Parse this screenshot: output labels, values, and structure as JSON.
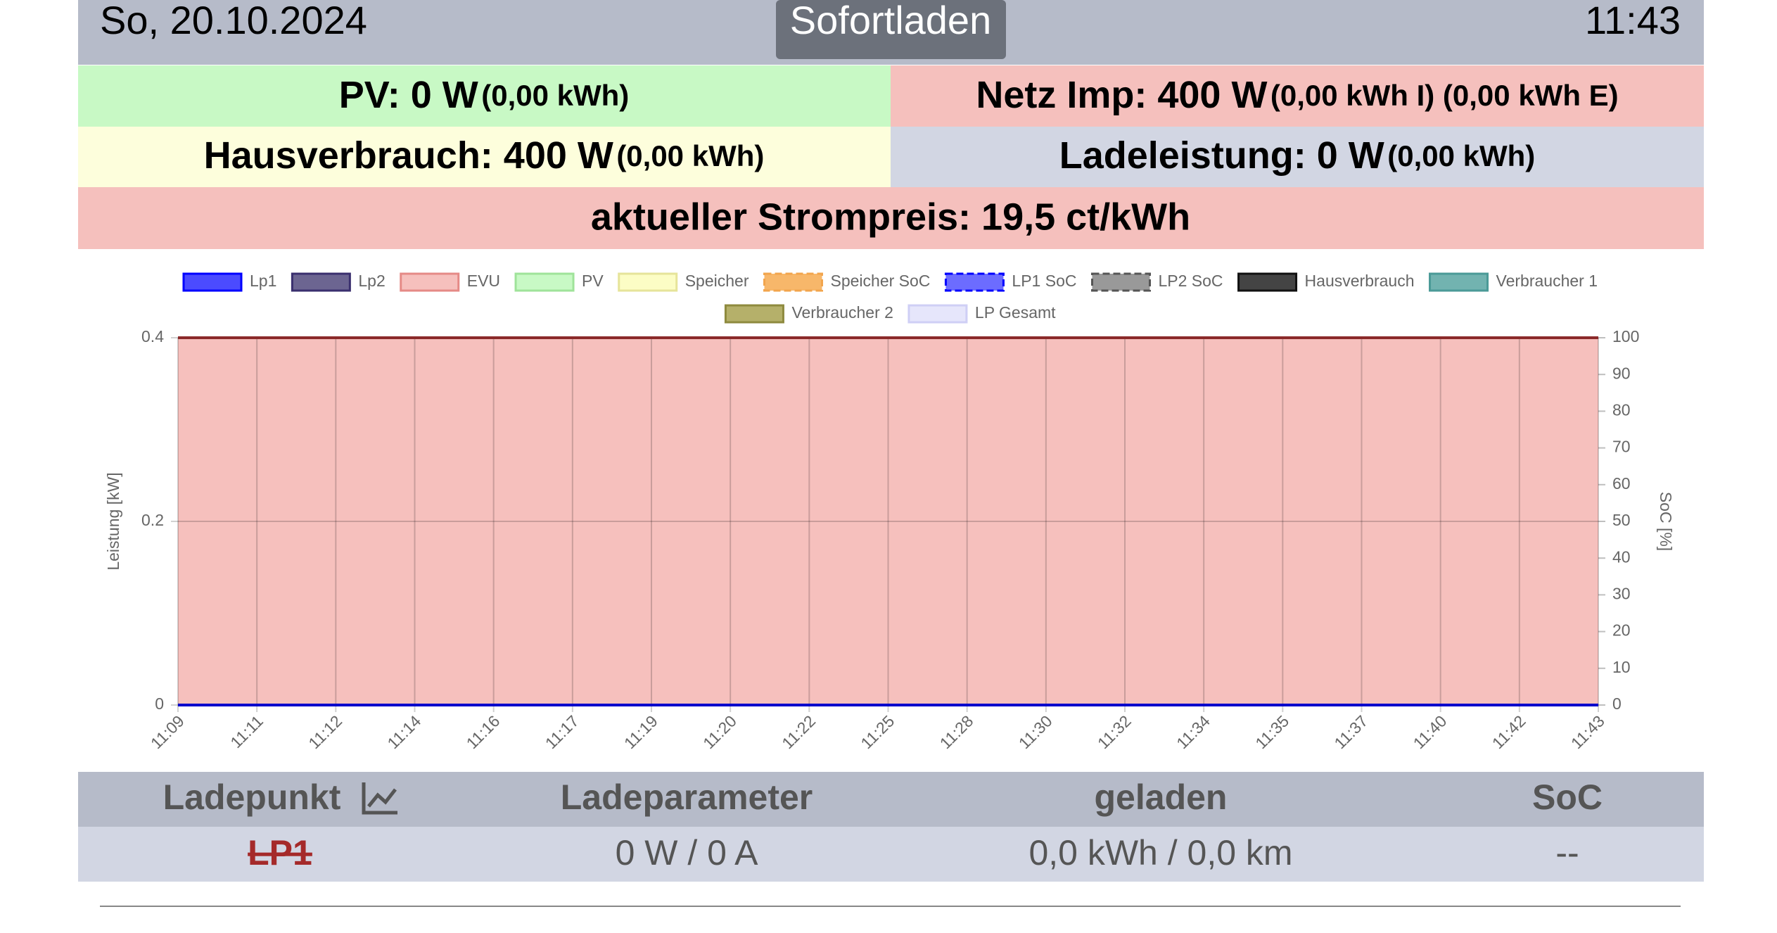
{
  "header": {
    "date": "So, 20.10.2024",
    "mode": "Sofortladen",
    "time": "11:43"
  },
  "status": {
    "pv": {
      "label": "PV: 0 W",
      "detail": "(0,00 kWh)"
    },
    "grid": {
      "label": "Netz Imp: 400 W",
      "detail": "(0,00 kWh I) (0,00 kWh E)"
    },
    "house": {
      "label": "Hausverbrauch: 400 W",
      "detail": "(0,00 kWh)"
    },
    "charge": {
      "label": "Ladeleistung: 0 W",
      "detail": "(0,00 kWh)"
    },
    "price": "aktueller Strompreis: 19,5 ct/kWh"
  },
  "chart_data": {
    "type": "area",
    "y_label": "Leistung [kW]",
    "y2_label": "SoC [%]",
    "categories": [
      "11:09",
      "11:11",
      "11:12",
      "11:14",
      "11:16",
      "11:17",
      "11:19",
      "11:20",
      "11:22",
      "11:25",
      "11:28",
      "11:30",
      "11:32",
      "11:34",
      "11:35",
      "11:37",
      "11:40",
      "11:42",
      "11:43"
    ],
    "series": [
      {
        "name": "EVU",
        "color": "#f6c0bd",
        "border": "#8b2a2a",
        "values": [
          0.4,
          0.4,
          0.4,
          0.4,
          0.4,
          0.4,
          0.4,
          0.4,
          0.4,
          0.4,
          0.4,
          0.4,
          0.4,
          0.4,
          0.4,
          0.4,
          0.4,
          0.4,
          0.4
        ]
      },
      {
        "name": "Lp1",
        "color": "#0000ff",
        "border": "#0000cc",
        "values": [
          0,
          0,
          0,
          0,
          0,
          0,
          0,
          0,
          0,
          0,
          0,
          0,
          0,
          0,
          0,
          0,
          0,
          0,
          0
        ]
      }
    ],
    "legend": [
      {
        "name": "Lp1",
        "color": "#4b4bff",
        "border": "#0000ff",
        "dashed": false
      },
      {
        "name": "Lp2",
        "color": "#6c6591",
        "border": "#3a2f6e",
        "dashed": false
      },
      {
        "name": "EVU",
        "color": "#f6c0bd",
        "border": "#e58a86",
        "dashed": false
      },
      {
        "name": "PV",
        "color": "#c8f9c5",
        "border": "#9fe39a",
        "dashed": false
      },
      {
        "name": "Speicher",
        "color": "#fcfdc5",
        "border": "#e6e49a",
        "dashed": false
      },
      {
        "name": "Speicher SoC",
        "color": "#f7b76a",
        "border": "#f2a54d",
        "dashed": true
      },
      {
        "name": "LP1 SoC",
        "color": "#6c6cff",
        "border": "#0000ff",
        "dashed": true
      },
      {
        "name": "LP2 SoC",
        "color": "#999999",
        "border": "#555555",
        "dashed": true
      },
      {
        "name": "Hausverbrauch",
        "color": "#444444",
        "border": "#111111",
        "dashed": false
      },
      {
        "name": "Verbraucher 1",
        "color": "#72b3b0",
        "border": "#4b9a97",
        "dashed": false
      },
      {
        "name": "Verbraucher 2",
        "color": "#b5b06a",
        "border": "#8e8a3e",
        "dashed": false
      },
      {
        "name": "LP Gesamt",
        "color": "#e6e6fb",
        "border": "#cfcff5",
        "dashed": false
      }
    ],
    "ylim": [
      0,
      0.4
    ],
    "yticks": [
      0,
      0.2,
      0.4
    ],
    "y2lim": [
      0,
      100
    ],
    "y2ticks": [
      0,
      10,
      20,
      30,
      40,
      50,
      60,
      70,
      80,
      90,
      100
    ],
    "grid": true
  },
  "table": {
    "columns": [
      "Ladepunkt",
      "Ladeparameter",
      "geladen",
      "SoC"
    ],
    "rows": [
      [
        "LP1",
        "0 W / 0 A",
        "0,0 kWh / 0,0 km",
        "--"
      ]
    ]
  }
}
